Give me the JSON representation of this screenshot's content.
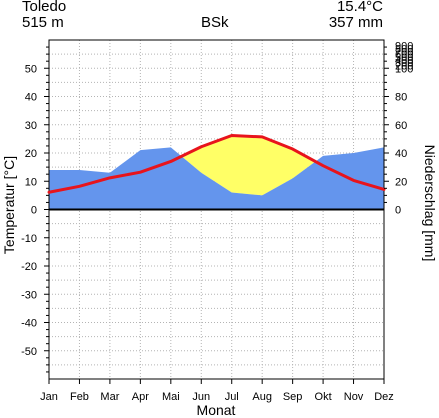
{
  "header": {
    "station": "Toledo",
    "elevation": "515 m",
    "climate_class": "BSk",
    "mean_temperature": "15.4°C",
    "annual_precipitation": "357 mm"
  },
  "chart_data": {
    "type": "area",
    "categories": [
      "Jan",
      "Feb",
      "Mar",
      "Apr",
      "Mai",
      "Jun",
      "Jul",
      "Aug",
      "Sep",
      "Okt",
      "Nov",
      "Dez"
    ],
    "xlabel": "Monat",
    "y_left": {
      "label": "Temperatur [°C]",
      "range": [
        -60,
        60
      ],
      "ticks": [
        -50,
        -40,
        -30,
        -20,
        -10,
        0,
        10,
        20,
        30,
        40,
        50
      ]
    },
    "y_right": {
      "label": "Niederschlag [mm]",
      "ticks": [
        0,
        20,
        40,
        60,
        80,
        100,
        200,
        300,
        400,
        500,
        600,
        700,
        800,
        900
      ]
    },
    "series": [
      {
        "name": "",
        "kind": "temperature",
        "color": "#e8141c",
        "values": [
          6.1,
          8.2,
          11.2,
          13.2,
          17.0,
          22.2,
          26.2,
          25.7,
          21.4,
          15.5,
          10.3,
          7.1
        ]
      },
      {
        "name": "",
        "kind": "precipitation",
        "color": "#6495ed",
        "values": [
          28,
          28,
          26,
          42,
          44,
          26,
          12,
          10,
          22,
          38,
          40,
          44
        ]
      }
    ],
    "fill_colors": {
      "humid": "#6495ed",
      "arid": "#ffff66"
    },
    "grid": true
  }
}
